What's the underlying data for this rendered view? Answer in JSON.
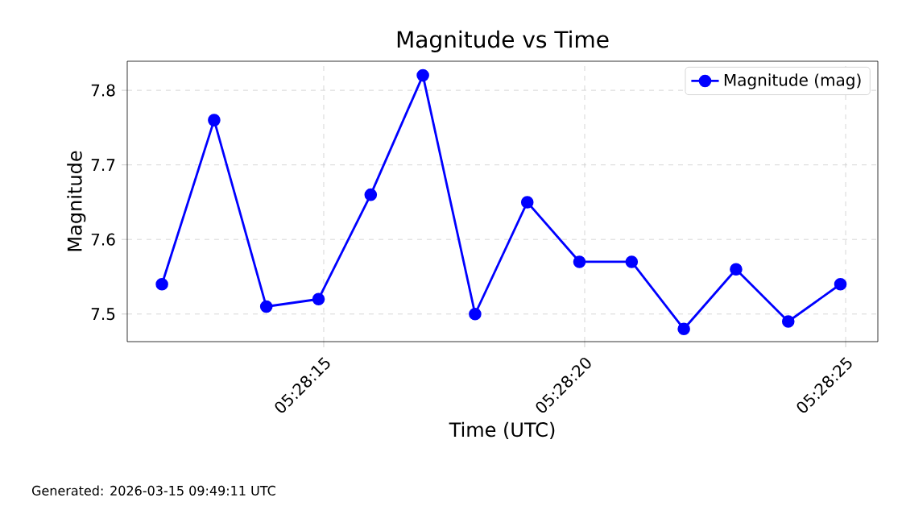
{
  "chart_data": {
    "type": "line",
    "title": "Magnitude vs Time",
    "xlabel": "Time (UTC)",
    "ylabel": "Magnitude",
    "x": [
      5.4699722,
      5.47025,
      5.4705278,
      5.4708056,
      5.4710833,
      5.4713611,
      5.4716389,
      5.4719167,
      5.4721944,
      5.4724722,
      5.47275,
      5.4730278,
      5.4733056,
      5.4735833
    ],
    "series": [
      {
        "name": "Magnitude (mag)",
        "color": "#0000ff",
        "values": [
          7.54,
          7.76,
          7.51,
          7.52,
          7.66,
          7.82,
          7.5,
          7.65,
          7.57,
          7.57,
          7.48,
          7.56,
          7.49,
          7.54
        ]
      }
    ],
    "xlim": [
      5.4697875,
      5.4737825
    ],
    "ylim": [
      7.463,
      7.839
    ],
    "xticks": [
      {
        "value": 5.4708333,
        "label": "05:28:15"
      },
      {
        "value": 5.4722222,
        "label": "05:28:20"
      },
      {
        "value": 5.4736111,
        "label": "05:28:25"
      }
    ],
    "yticks": [
      7.5,
      7.6,
      7.7,
      7.8
    ],
    "grid": true,
    "legend": "top right",
    "marker": "circle",
    "line_style": "solid",
    "annotations": [
      "Generated: 2026-03-15 09:49:11 UTC"
    ]
  }
}
